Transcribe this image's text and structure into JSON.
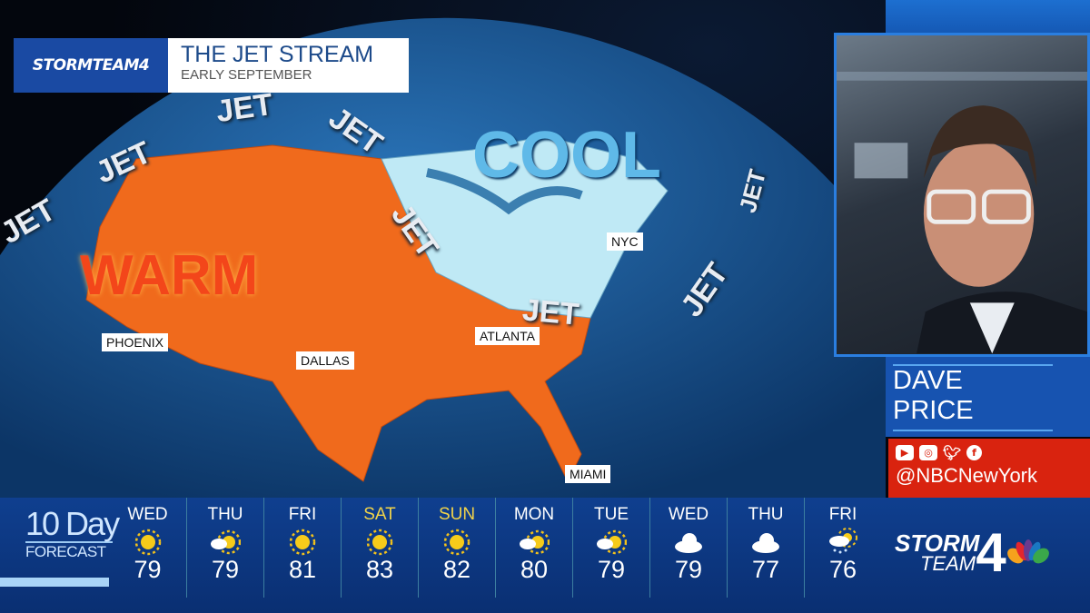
{
  "title": {
    "logo": "STORMTEAM4",
    "main": "THE JET STREAM",
    "sub": "EARLY SEPTEMBER"
  },
  "map": {
    "labels": {
      "warm": "WARM",
      "cool": "COOL",
      "jet": "JET"
    },
    "cities": [
      "PHOENIX",
      "DALLAS",
      "ATLANTA",
      "NYC",
      "MIAMI"
    ],
    "colors": {
      "warm": "#f06a1c",
      "cool": "#bfe9f5",
      "ocean": "#1d5d9a"
    }
  },
  "presenter": {
    "first": "DAVE",
    "last": "PRICE",
    "handle": "@NBCNewYork",
    "social_icons": [
      "youtube-icon",
      "instagram-icon",
      "twitter-icon",
      "facebook-icon"
    ]
  },
  "forecast": {
    "label_top": "10 Day",
    "label_bottom": "FORECAST",
    "days": [
      {
        "day": "WED",
        "icon": "sunny",
        "temp": "79",
        "weekend": false
      },
      {
        "day": "THU",
        "icon": "partly-cloudy",
        "temp": "79",
        "weekend": false
      },
      {
        "day": "FRI",
        "icon": "sunny",
        "temp": "81",
        "weekend": false
      },
      {
        "day": "SAT",
        "icon": "sunny",
        "temp": "83",
        "weekend": true
      },
      {
        "day": "SUN",
        "icon": "sunny",
        "temp": "82",
        "weekend": true
      },
      {
        "day": "MON",
        "icon": "partly-cloudy",
        "temp": "80",
        "weekend": false
      },
      {
        "day": "TUE",
        "icon": "partly-cloudy",
        "temp": "79",
        "weekend": false
      },
      {
        "day": "WED",
        "icon": "cloudy",
        "temp": "79",
        "weekend": false
      },
      {
        "day": "THU",
        "icon": "cloudy",
        "temp": "77",
        "weekend": false
      },
      {
        "day": "FRI",
        "icon": "showers",
        "temp": "76",
        "weekend": false
      }
    ]
  },
  "brand": {
    "line1": "STORM",
    "line2": "TEAM",
    "number": "4"
  }
}
